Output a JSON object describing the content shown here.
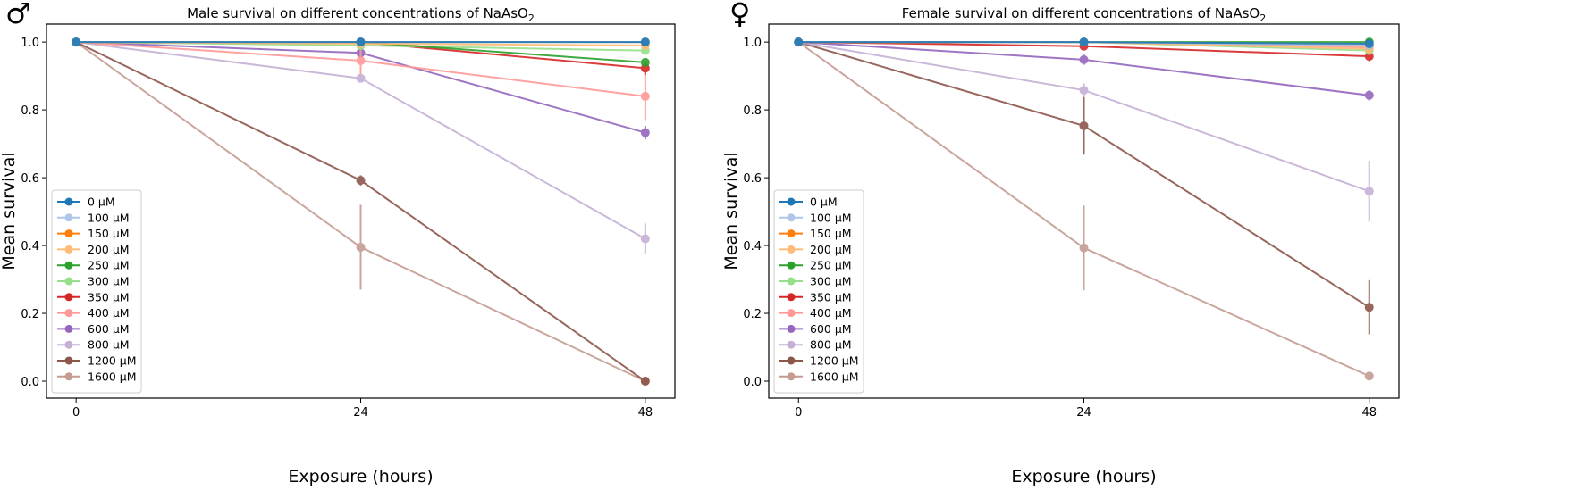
{
  "chart_data": [
    {
      "type": "line",
      "symbol": "♂",
      "title": "Male survival on different concentrations of NaAsO",
      "title_sub": "2",
      "xlabel": "Exposure (hours)",
      "ylabel": "Mean survival",
      "x": [
        0,
        24,
        48
      ],
      "x_ticks": [
        "0",
        "24",
        "48"
      ],
      "y_ticks": [
        "0.0",
        "0.2",
        "0.4",
        "0.6",
        "0.8",
        "1.0"
      ],
      "xlim": [
        -2.5,
        50.5
      ],
      "ylim": [
        -0.05,
        1.053
      ],
      "grid": false,
      "legend_placement": "lower-left",
      "series": [
        {
          "name": "0 µM",
          "color": "#1f77b4",
          "values": [
            1.0,
            1.0,
            1.0
          ],
          "err": [
            0,
            0,
            0
          ]
        },
        {
          "name": "100 µM",
          "color": "#aec7e8",
          "values": [
            1.0,
            1.0,
            1.0
          ],
          "err": [
            0,
            0,
            0
          ]
        },
        {
          "name": "150 µM",
          "color": "#ff7f0e",
          "values": [
            1.0,
            1.0,
            1.0
          ],
          "err": [
            0,
            0,
            0
          ]
        },
        {
          "name": "200 µM",
          "color": "#ffbb78",
          "values": [
            1.0,
            0.995,
            0.99
          ],
          "err": [
            0,
            0,
            0.005
          ]
        },
        {
          "name": "250 µM",
          "color": "#2ca02c",
          "values": [
            1.0,
            1.0,
            0.94
          ],
          "err": [
            0,
            0,
            0.01
          ]
        },
        {
          "name": "300 µM",
          "color": "#98df8a",
          "values": [
            1.0,
            0.99,
            0.975
          ],
          "err": [
            0,
            0.005,
            0.01
          ]
        },
        {
          "name": "350 µM",
          "color": "#d62728",
          "values": [
            1.0,
            1.0,
            0.923
          ],
          "err": [
            0,
            0,
            0.02
          ]
        },
        {
          "name": "400 µM",
          "color": "#ff9896",
          "values": [
            1.0,
            0.945,
            0.84
          ],
          "err": [
            0,
            0.04,
            0.07
          ]
        },
        {
          "name": "600 µM",
          "color": "#9467bd",
          "values": [
            1.0,
            0.968,
            0.733
          ],
          "err": [
            0,
            0.015,
            0.02
          ]
        },
        {
          "name": "800 µM",
          "color": "#c5b0d5",
          "values": [
            1.0,
            0.893,
            0.42
          ],
          "err": [
            0,
            0.012,
            0.045
          ]
        },
        {
          "name": "1200 µM",
          "color": "#8c564b",
          "values": [
            1.0,
            0.592,
            0.0
          ],
          "err": [
            0,
            0.015,
            0
          ]
        },
        {
          "name": "1600 µM",
          "color": "#c49c94",
          "values": [
            1.0,
            0.395,
            0.0
          ],
          "err": [
            0,
            0.125,
            0
          ]
        }
      ]
    },
    {
      "type": "line",
      "symbol": "♀",
      "title": "Female survival on different concentrations of NaAsO",
      "title_sub": "2",
      "xlabel": "Exposure (hours)",
      "ylabel": "Mean survival",
      "x": [
        0,
        24,
        48
      ],
      "x_ticks": [
        "0",
        "24",
        "48"
      ],
      "y_ticks": [
        "0.0",
        "0.2",
        "0.4",
        "0.6",
        "0.8",
        "1.0"
      ],
      "xlim": [
        -2.5,
        50.5
      ],
      "ylim": [
        -0.05,
        1.053
      ],
      "grid": false,
      "legend_placement": "lower-left",
      "series": [
        {
          "name": "0 µM",
          "color": "#1f77b4",
          "values": [
            1.0,
            1.0,
            0.995
          ],
          "err": [
            0,
            0,
            0.005
          ]
        },
        {
          "name": "100 µM",
          "color": "#aec7e8",
          "values": [
            1.0,
            1.0,
            0.99
          ],
          "err": [
            0,
            0,
            0.005
          ]
        },
        {
          "name": "150 µM",
          "color": "#ff7f0e",
          "values": [
            1.0,
            1.0,
            0.99
          ],
          "err": [
            0,
            0,
            0.005
          ]
        },
        {
          "name": "200 µM",
          "color": "#ffbb78",
          "values": [
            1.0,
            1.0,
            0.98
          ],
          "err": [
            0,
            0,
            0.01
          ]
        },
        {
          "name": "250 µM",
          "color": "#2ca02c",
          "values": [
            1.0,
            1.0,
            1.0
          ],
          "err": [
            0,
            0,
            0
          ]
        },
        {
          "name": "300 µM",
          "color": "#98df8a",
          "values": [
            1.0,
            1.0,
            0.975
          ],
          "err": [
            0,
            0,
            0.01
          ]
        },
        {
          "name": "350 µM",
          "color": "#d62728",
          "values": [
            1.0,
            0.988,
            0.958
          ],
          "err": [
            0,
            0.01,
            0.015
          ]
        },
        {
          "name": "400 µM",
          "color": "#ff9896",
          "values": [
            1.0,
            1.0,
            0.985
          ],
          "err": [
            0,
            0,
            0.01
          ]
        },
        {
          "name": "600 µM",
          "color": "#9467bd",
          "values": [
            1.0,
            0.948,
            0.843
          ],
          "err": [
            0,
            0.015,
            0.015
          ]
        },
        {
          "name": "800 µM",
          "color": "#c5b0d5",
          "values": [
            1.0,
            0.858,
            0.56
          ],
          "err": [
            0,
            0.02,
            0.09
          ]
        },
        {
          "name": "1200 µM",
          "color": "#8c564b",
          "values": [
            1.0,
            0.753,
            0.218
          ],
          "err": [
            0,
            0.085,
            0.08
          ]
        },
        {
          "name": "1600 µM",
          "color": "#c49c94",
          "values": [
            1.0,
            0.393,
            0.015
          ],
          "err": [
            0,
            0.125,
            0.01
          ]
        }
      ]
    }
  ]
}
